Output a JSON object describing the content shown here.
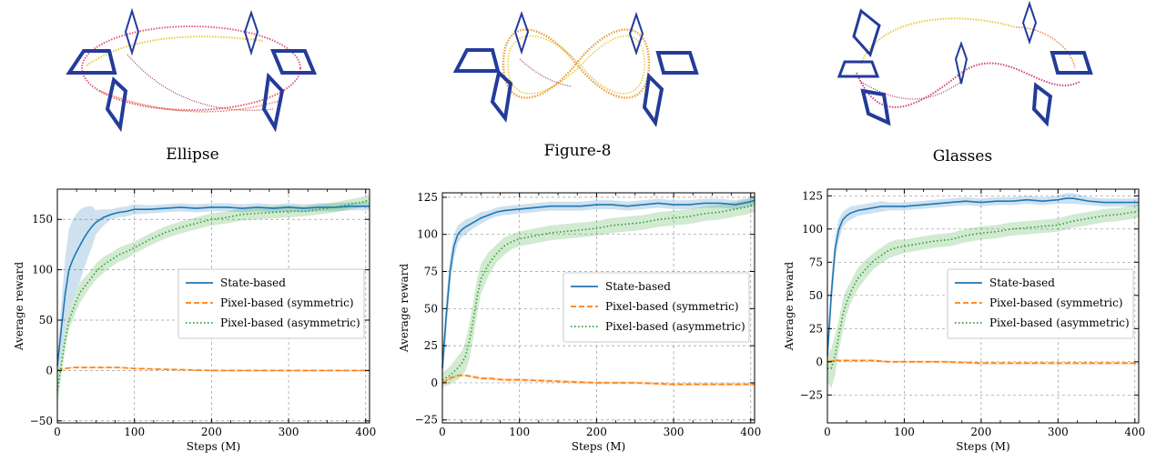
{
  "panels": [
    {
      "caption": "Ellipse"
    },
    {
      "caption": "Figure-8"
    },
    {
      "caption": "Glasses"
    }
  ],
  "legend": [
    "State-based",
    "Pixel-based (symmetric)",
    "Pixel-based (asymmetric)"
  ],
  "series_colors": {
    "state": "#1f77b4",
    "sym": "#ff7f0e",
    "asym": "#2ca02c"
  },
  "chart_data": [
    {
      "type": "line",
      "title": "",
      "xlabel": "Steps (M)",
      "ylabel": "Average reward",
      "xlim": [
        0,
        405
      ],
      "ylim": [
        -52,
        180
      ],
      "xticks": [
        0,
        100,
        200,
        300,
        400
      ],
      "yticks": [
        -50,
        0,
        50,
        100,
        150
      ],
      "ytick_labels": [
        "−50",
        "0",
        "50",
        "100",
        "150"
      ],
      "legend_position": "center-right",
      "grid": true,
      "series": [
        {
          "name": "State-based",
          "x": [
            0,
            5,
            10,
            15,
            20,
            25,
            30,
            35,
            40,
            45,
            50,
            60,
            70,
            80,
            90,
            100,
            120,
            140,
            160,
            180,
            200,
            220,
            240,
            260,
            280,
            300,
            320,
            340,
            360,
            380,
            400,
            405
          ],
          "values": [
            5,
            40,
            75,
            100,
            110,
            118,
            125,
            132,
            138,
            143,
            147,
            152,
            155,
            157,
            158,
            160,
            160,
            161,
            162,
            161,
            162,
            162,
            161,
            162,
            161,
            162,
            161,
            162,
            162,
            163,
            163,
            163
          ],
          "spread": [
            10,
            25,
            35,
            40,
            40,
            38,
            35,
            30,
            25,
            20,
            12,
            8,
            5,
            5,
            5,
            5,
            4,
            4,
            4,
            4,
            4,
            4,
            4,
            4,
            4,
            4,
            4,
            4,
            4,
            4,
            4,
            4
          ]
        },
        {
          "name": "Pixel-based (symmetric)",
          "x": [
            0,
            10,
            20,
            30,
            40,
            60,
            80,
            100,
            150,
            200,
            250,
            300,
            350,
            405
          ],
          "values": [
            0,
            2,
            3,
            3,
            3,
            3,
            3,
            2,
            1,
            0,
            0,
            0,
            0,
            0
          ],
          "spread": [
            1,
            1,
            1,
            1,
            1,
            1,
            1,
            1,
            1,
            1,
            1,
            1,
            1,
            1
          ]
        },
        {
          "name": "Pixel-based (asymmetric)",
          "x": [
            0,
            5,
            10,
            15,
            20,
            25,
            30,
            40,
            50,
            60,
            70,
            80,
            90,
            100,
            120,
            140,
            160,
            180,
            200,
            220,
            240,
            260,
            280,
            300,
            320,
            340,
            360,
            380,
            400,
            405
          ],
          "values": [
            -20,
            5,
            30,
            50,
            60,
            70,
            78,
            88,
            98,
            105,
            110,
            115,
            118,
            122,
            130,
            137,
            142,
            146,
            150,
            152,
            155,
            156,
            157,
            158,
            158,
            160,
            162,
            165,
            168,
            170
          ],
          "spread": [
            15,
            12,
            10,
            10,
            10,
            10,
            10,
            8,
            8,
            8,
            7,
            7,
            7,
            6,
            6,
            6,
            6,
            6,
            6,
            6,
            6,
            6,
            6,
            6,
            5,
            5,
            5,
            5,
            5,
            5
          ]
        }
      ]
    },
    {
      "type": "line",
      "title": "",
      "xlabel": "Steps (M)",
      "ylabel": "Average reward",
      "xlim": [
        0,
        405
      ],
      "ylim": [
        -27,
        128
      ],
      "xticks": [
        0,
        100,
        200,
        300,
        400
      ],
      "yticks": [
        -25,
        0,
        25,
        50,
        75,
        100,
        125
      ],
      "ytick_labels": [
        "−25",
        "0",
        "25",
        "50",
        "75",
        "100",
        "125"
      ],
      "legend_position": "center-right",
      "grid": true,
      "series": [
        {
          "name": "State-based",
          "x": [
            0,
            5,
            10,
            15,
            20,
            25,
            30,
            40,
            50,
            60,
            70,
            80,
            100,
            120,
            140,
            160,
            180,
            200,
            220,
            240,
            260,
            280,
            300,
            320,
            340,
            360,
            380,
            400,
            405
          ],
          "values": [
            10,
            45,
            75,
            92,
            100,
            103,
            105,
            108,
            111,
            113,
            115,
            116,
            117,
            118,
            119,
            119,
            119,
            120,
            120,
            119,
            120,
            121,
            120,
            120,
            121,
            121,
            120,
            122,
            123
          ],
          "spread": [
            12,
            12,
            10,
            8,
            6,
            5,
            5,
            4,
            4,
            3,
            3,
            3,
            3,
            3,
            3,
            3,
            3,
            3,
            3,
            3,
            3,
            3,
            3,
            3,
            3,
            3,
            3,
            3,
            3
          ]
        },
        {
          "name": "Pixel-based (symmetric)",
          "x": [
            0,
            10,
            20,
            30,
            40,
            50,
            60,
            80,
            100,
            150,
            200,
            250,
            300,
            350,
            405
          ],
          "values": [
            0,
            3,
            5,
            5,
            4,
            3,
            3,
            2,
            2,
            1,
            0,
            0,
            -1,
            -1,
            -1
          ],
          "spread": [
            1,
            1,
            1,
            1,
            1,
            1,
            1,
            1,
            1,
            1,
            1,
            1,
            1,
            1,
            1
          ]
        },
        {
          "name": "Pixel-based (asymmetric)",
          "x": [
            0,
            10,
            20,
            25,
            30,
            35,
            40,
            45,
            50,
            60,
            70,
            80,
            90,
            100,
            120,
            140,
            160,
            180,
            200,
            220,
            240,
            260,
            280,
            300,
            320,
            340,
            360,
            380,
            400,
            405
          ],
          "values": [
            2,
            5,
            10,
            13,
            18,
            28,
            42,
            58,
            70,
            80,
            87,
            92,
            95,
            97,
            99,
            101,
            102,
            103,
            104,
            106,
            107,
            108,
            110,
            111,
            112,
            114,
            115,
            117,
            119,
            120
          ],
          "spread": [
            5,
            6,
            8,
            8,
            10,
            12,
            12,
            12,
            10,
            8,
            6,
            6,
            5,
            5,
            5,
            5,
            5,
            5,
            5,
            5,
            5,
            5,
            5,
            5,
            5,
            5,
            5,
            5,
            5,
            5
          ]
        }
      ]
    },
    {
      "type": "line",
      "title": "",
      "xlabel": "Steps (M)",
      "ylabel": "Average reward",
      "xlim": [
        0,
        405
      ],
      "ylim": [
        -46,
        130
      ],
      "xticks": [
        0,
        100,
        200,
        300,
        400
      ],
      "yticks": [
        -25,
        0,
        25,
        50,
        75,
        100,
        125
      ],
      "ytick_labels": [
        "−25",
        "0",
        "25",
        "50",
        "75",
        "100",
        "125"
      ],
      "legend_position": "center-right",
      "grid": true,
      "series": [
        {
          "name": "State-based",
          "x": [
            0,
            5,
            10,
            15,
            20,
            25,
            30,
            40,
            50,
            60,
            70,
            80,
            100,
            120,
            140,
            160,
            180,
            200,
            220,
            240,
            260,
            280,
            300,
            310,
            320,
            340,
            360,
            380,
            400,
            405
          ],
          "values": [
            5,
            50,
            85,
            100,
            107,
            110,
            112,
            114,
            115,
            116,
            117,
            117,
            117,
            118,
            119,
            120,
            121,
            120,
            121,
            121,
            122,
            121,
            122,
            123,
            123,
            121,
            120,
            120,
            120,
            120
          ],
          "spread": [
            10,
            12,
            10,
            8,
            6,
            5,
            5,
            4,
            4,
            4,
            4,
            3,
            3,
            3,
            3,
            3,
            3,
            3,
            3,
            3,
            3,
            3,
            3,
            4,
            4,
            3,
            3,
            3,
            3,
            3
          ]
        },
        {
          "name": "Pixel-based (symmetric)",
          "x": [
            0,
            10,
            20,
            30,
            40,
            50,
            60,
            80,
            100,
            150,
            200,
            250,
            300,
            350,
            405
          ],
          "values": [
            0,
            1,
            1,
            1,
            1,
            1,
            1,
            0,
            0,
            0,
            -1,
            -1,
            -1,
            -1,
            -1
          ],
          "spread": [
            1,
            1,
            1,
            1,
            1,
            1,
            1,
            1,
            1,
            1,
            1,
            1,
            1,
            1,
            1
          ]
        },
        {
          "name": "Pixel-based (asymmetric)",
          "x": [
            0,
            5,
            10,
            15,
            20,
            25,
            30,
            35,
            40,
            50,
            60,
            70,
            80,
            90,
            100,
            120,
            140,
            160,
            180,
            200,
            220,
            240,
            260,
            280,
            300,
            320,
            340,
            360,
            380,
            400,
            405
          ],
          "values": [
            -5,
            -5,
            5,
            20,
            35,
            45,
            52,
            58,
            63,
            70,
            76,
            80,
            84,
            86,
            87,
            89,
            91,
            92,
            95,
            97,
            98,
            100,
            101,
            102,
            103,
            106,
            108,
            110,
            111,
            113,
            114
          ],
          "spread": [
            10,
            15,
            15,
            12,
            12,
            10,
            8,
            8,
            8,
            7,
            6,
            6,
            6,
            6,
            5,
            5,
            5,
            5,
            5,
            5,
            5,
            5,
            5,
            5,
            5,
            5,
            5,
            5,
            5,
            5,
            5
          ]
        }
      ]
    }
  ]
}
